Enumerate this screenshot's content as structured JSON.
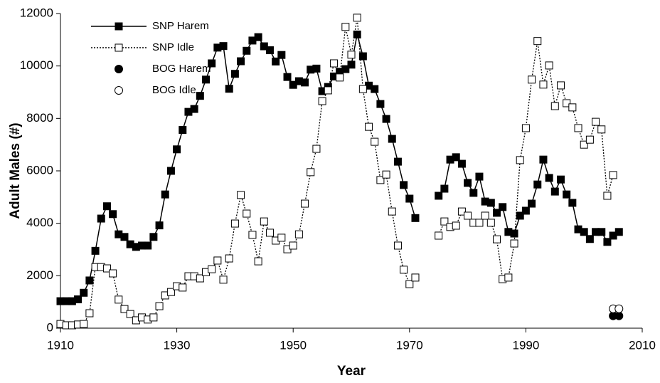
{
  "chart_data": {
    "type": "line",
    "xlabel": "Year",
    "ylabel": "Adult Males (#)",
    "xlim": [
      1910,
      2010
    ],
    "xticks": [
      1910,
      1930,
      1950,
      1970,
      1990,
      2010
    ],
    "ylim": [
      0,
      12000
    ],
    "yticks": [
      0,
      2000,
      4000,
      6000,
      8000,
      10000,
      12000
    ],
    "grid": false,
    "legend": "upper left",
    "x": [
      1910,
      1911,
      1912,
      1913,
      1914,
      1915,
      1916,
      1917,
      1918,
      1919,
      1920,
      1921,
      1922,
      1923,
      1924,
      1925,
      1926,
      1927,
      1928,
      1929,
      1930,
      1931,
      1932,
      1933,
      1934,
      1935,
      1936,
      1937,
      1938,
      1939,
      1940,
      1941,
      1942,
      1943,
      1944,
      1945,
      1946,
      1947,
      1948,
      1949,
      1950,
      1951,
      1952,
      1953,
      1954,
      1955,
      1956,
      1957,
      1958,
      1959,
      1960,
      1961,
      1962,
      1963,
      1964,
      1965,
      1966,
      1967,
      1968,
      1969,
      1970,
      1971,
      1972,
      1973,
      1974,
      1975,
      1976,
      1977,
      1978,
      1979,
      1980,
      1981,
      1982,
      1983,
      1984,
      1985,
      1986,
      1987,
      1988,
      1989,
      1990,
      1991,
      1992,
      1993,
      1994,
      1995,
      1996,
      1997,
      1998,
      1999,
      2000,
      2001,
      2002,
      2003,
      2004,
      2005,
      2006
    ],
    "series": [
      {
        "name": "SNP Harem",
        "color": "#000000",
        "line": "solid",
        "marker": "square",
        "filled": true,
        "values": [
          1030,
          1030,
          1030,
          1100,
          1350,
          1820,
          2950,
          4180,
          4650,
          4350,
          3580,
          3480,
          3200,
          3100,
          3150,
          3150,
          3480,
          3920,
          5100,
          6000,
          6820,
          7560,
          8250,
          8360,
          8860,
          9480,
          10100,
          10700,
          10760,
          9130,
          9700,
          10180,
          10580,
          10970,
          11100,
          10750,
          10600,
          10170,
          10420,
          9580,
          9280,
          9420,
          9370,
          9860,
          9900,
          9040,
          9200,
          9600,
          9780,
          9880,
          10050,
          11200,
          10370,
          9250,
          9120,
          8550,
          7980,
          7220,
          6350,
          5460,
          4940,
          4200,
          null,
          null,
          null,
          5050,
          5320,
          6430,
          6520,
          6270,
          5540,
          5160,
          5780,
          4830,
          4780,
          4400,
          4620,
          3670,
          3610,
          4290,
          4480,
          4750,
          5480,
          6430,
          5730,
          5210,
          5670,
          5100,
          4780,
          3770,
          3670,
          3400,
          3670,
          3670,
          3290,
          3530,
          3670
        ]
      },
      {
        "name": "SNP Idle",
        "color": "#000000",
        "line": "dotted",
        "marker": "square",
        "filled": false,
        "values": [
          160,
          110,
          110,
          140,
          160,
          570,
          2330,
          2330,
          2280,
          2090,
          1090,
          730,
          540,
          300,
          410,
          330,
          410,
          840,
          1250,
          1380,
          1600,
          1550,
          1980,
          1980,
          1900,
          2140,
          2250,
          2580,
          1850,
          2660,
          3990,
          5080,
          4370,
          3560,
          2550,
          4070,
          3640,
          3340,
          3450,
          3010,
          3150,
          3580,
          4750,
          5950,
          6840,
          8660,
          9070,
          10100,
          9560,
          11490,
          10430,
          11840,
          9120,
          7680,
          7110,
          5650,
          5860,
          4450,
          3150,
          2230,
          1680,
          1930,
          null,
          null,
          null,
          3530,
          4070,
          3860,
          3910,
          4450,
          4290,
          4020,
          4020,
          4290,
          4020,
          3390,
          1870,
          1930,
          3230,
          6410,
          7630,
          9480,
          10950,
          9290,
          10020,
          8470,
          9260,
          8580,
          8420,
          7630,
          7000,
          7190,
          7870,
          7580,
          5050,
          5840,
          null
        ]
      },
      {
        "name": "BOG Harem",
        "color": "#000000",
        "line": "none",
        "marker": "circle",
        "filled": true,
        "x": [
          2005,
          2006
        ],
        "values": [
          470,
          470
        ]
      },
      {
        "name": "BOG Idle",
        "color": "#000000",
        "line": "none",
        "marker": "circle",
        "filled": false,
        "x": [
          2005,
          2006
        ],
        "values": [
          740,
          740
        ]
      }
    ]
  }
}
